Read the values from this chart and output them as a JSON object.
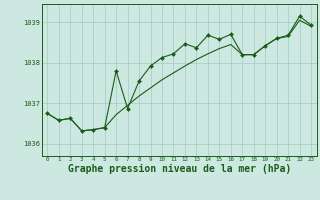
{
  "bg_color": "#cce8e0",
  "grid_color": "#a8cfc8",
  "line_color": "#1a5c1a",
  "xlabel": "Graphe pression niveau de la mer (hPa)",
  "xlabel_fontsize": 7,
  "ylim": [
    1035.7,
    1039.45
  ],
  "xlim": [
    -0.5,
    23.5
  ],
  "yticks": [
    1036,
    1037,
    1038,
    1039
  ],
  "xticks": [
    0,
    1,
    2,
    3,
    4,
    5,
    6,
    7,
    8,
    9,
    10,
    11,
    12,
    13,
    14,
    15,
    16,
    17,
    18,
    19,
    20,
    21,
    22,
    23
  ],
  "series1_x": [
    0,
    1,
    2,
    3,
    4,
    5,
    6,
    7,
    8,
    9,
    10,
    11,
    12,
    13,
    14,
    15,
    16,
    17,
    18,
    19,
    20,
    21,
    22,
    23
  ],
  "series1_y": [
    1036.75,
    1036.58,
    1036.63,
    1036.32,
    1036.35,
    1036.4,
    1037.8,
    1036.87,
    1037.55,
    1037.92,
    1038.13,
    1038.22,
    1038.47,
    1038.37,
    1038.68,
    1038.58,
    1038.7,
    1038.2,
    1038.2,
    1038.42,
    1038.6,
    1038.68,
    1039.15,
    1038.93
  ],
  "series2_x": [
    0,
    1,
    2,
    3,
    4,
    5,
    6,
    7,
    8,
    9,
    10,
    11,
    12,
    13,
    14,
    15,
    16,
    17,
    18,
    19,
    20,
    21,
    22,
    23
  ],
  "series2_y": [
    1036.75,
    1036.58,
    1036.63,
    1036.32,
    1036.35,
    1036.4,
    1036.72,
    1036.95,
    1037.18,
    1037.38,
    1037.58,
    1037.75,
    1037.92,
    1038.08,
    1038.22,
    1038.35,
    1038.45,
    1038.2,
    1038.2,
    1038.42,
    1038.6,
    1038.65,
    1039.05,
    1038.9
  ]
}
